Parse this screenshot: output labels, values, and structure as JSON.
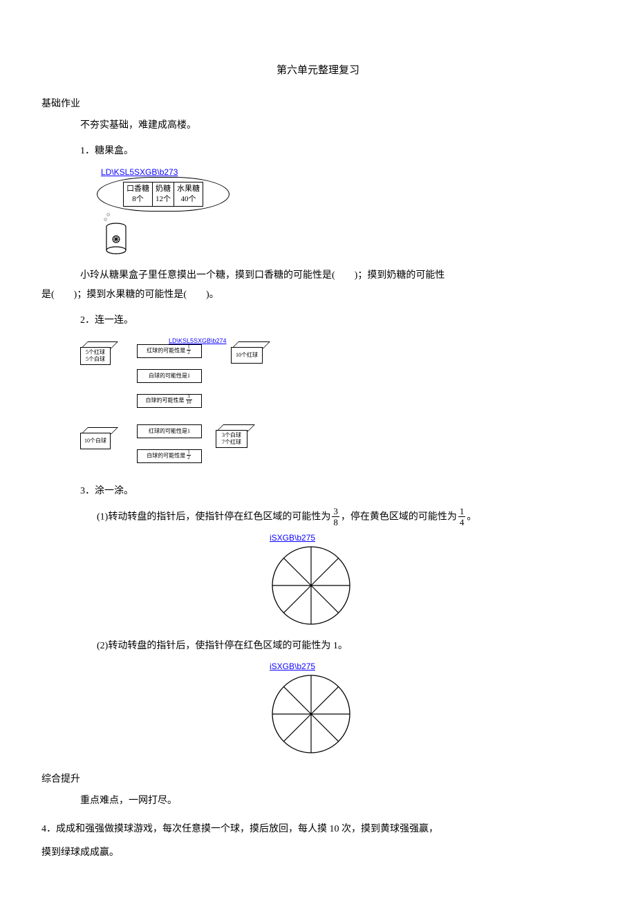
{
  "title": "第六单元整理复习",
  "section_a": {
    "head": "基础作业",
    "intro": "不夯实基础，难建成高楼。"
  },
  "q1": {
    "label": "1．糖果盒。",
    "img_code": "LD\\KSL5SXGB\\b273",
    "cells": [
      {
        "name": "口香糖",
        "count": "8个"
      },
      {
        "name": "奶糖",
        "count": "12个"
      },
      {
        "name": "水果糖",
        "count": "40个"
      }
    ],
    "paragraph_a": "小玲从糖果盒子里任意摸出一个糖，摸到口香糖的可能性是(　　)；摸到奶糖的可能性",
    "paragraph_b": "是(　　)；摸到水果糖的可能性是(　　)。"
  },
  "q2": {
    "label": "2．连一连。",
    "img_code": "LD\\KSL5SXGB\\b274",
    "boxes_left": [
      {
        "line1": "5个红球",
        "line2": "5个白球"
      },
      {
        "line1": "10个白球",
        "line2": ""
      }
    ],
    "boxes_right": [
      {
        "line1": "10个红球",
        "line2": ""
      },
      {
        "line1": "3个白球",
        "line2": "7个红球"
      }
    ],
    "mid_labels": [
      {
        "pre": "红球的可能性是",
        "num": "1",
        "den": "2"
      },
      {
        "plain": "白球的可能性是1"
      },
      {
        "pre": "白球的可能性是",
        "num": "3",
        "den": "10"
      },
      {
        "plain": "红球的可能性是1"
      },
      {
        "pre": "白球的可能性是",
        "num": "1",
        "den": "2"
      }
    ]
  },
  "q3": {
    "label": "3．涂一涂。",
    "p1_a": "(1)转动转盘的指针后，使指针停在红色区域的可能性为",
    "p1_frac1": {
      "n": "3",
      "d": "8"
    },
    "p1_b": "，停在黄色区域的可能性为",
    "p1_frac2": {
      "n": "1",
      "d": "4"
    },
    "p1_c": "。",
    "p2": "(2)转动转盘的指针后，使指针停在红色区域的可能性为 1。",
    "img_code": "iSXGB\\b275",
    "spinner": {
      "radius": 56,
      "sectors": 8,
      "stroke": "#000000",
      "fill": "#ffffff"
    }
  },
  "section_b": {
    "head": "综合提升",
    "intro": "重点难点，一网打尽。"
  },
  "q4": {
    "line1": "4．成成和强强做摸球游戏，每次任意摸一个球，摸后放回，每人摸 10 次，摸到黄球强强赢，",
    "line2": "摸到绿球成成赢。"
  }
}
